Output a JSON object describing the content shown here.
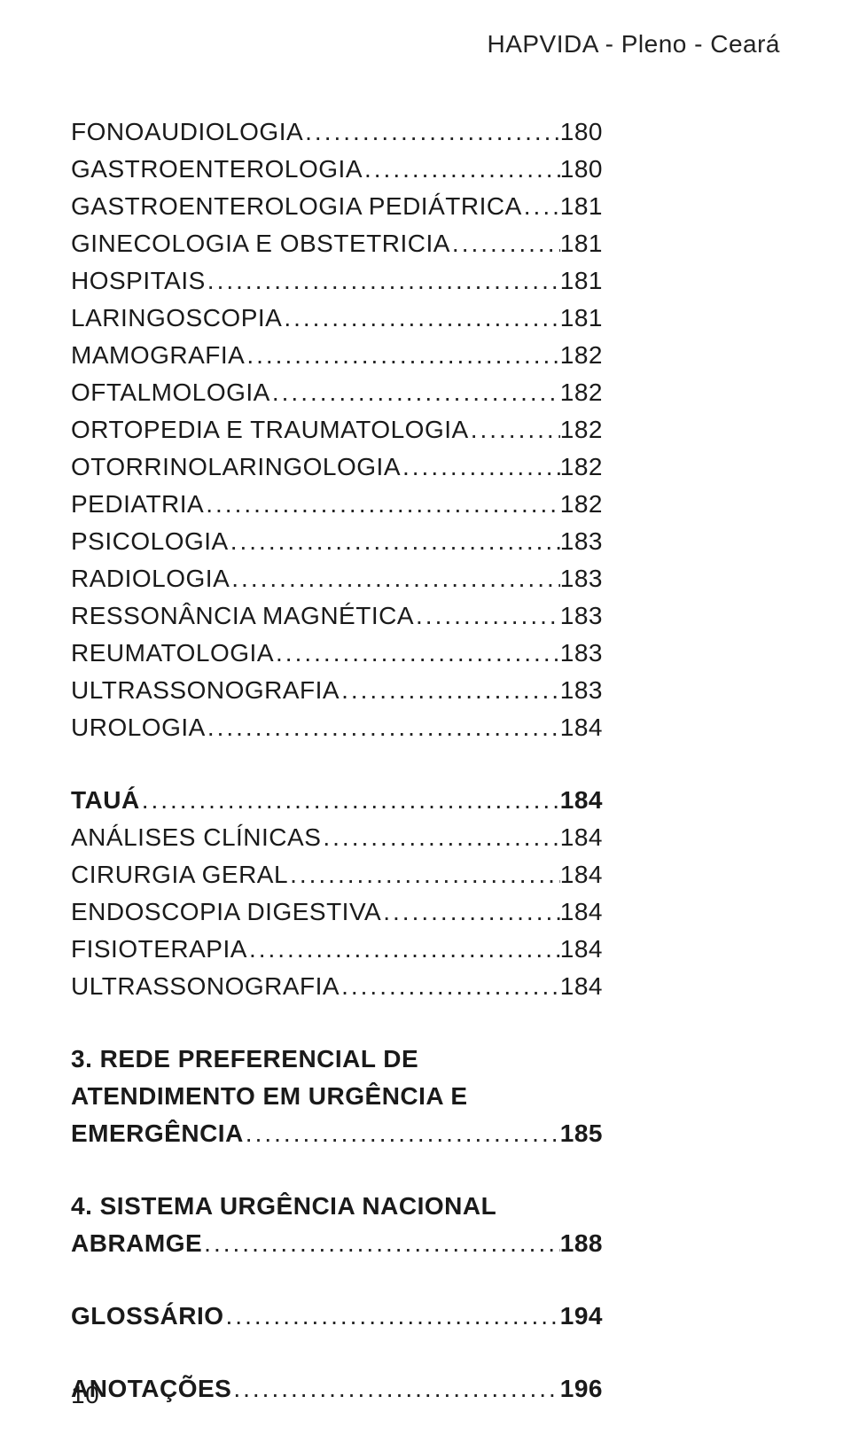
{
  "header": "HAPVIDA - Pleno - Ceará",
  "page_number": "10",
  "dots": "............................................................................................................................",
  "groups": [
    {
      "gap_before": false,
      "items": [
        {
          "label": "FONOAUDIOLOGIA",
          "page": "180",
          "bold": false
        },
        {
          "label": "GASTROENTEROLOGIA",
          "page": "180",
          "bold": false
        },
        {
          "label": "GASTROENTEROLOGIA PEDIÁTRICA",
          "page": "181",
          "bold": false
        },
        {
          "label": "GINECOLOGIA E OBSTETRICIA",
          "page": "181",
          "bold": false
        },
        {
          "label": "HOSPITAIS",
          "page": "181",
          "bold": false
        },
        {
          "label": "LARINGOSCOPIA",
          "page": "181",
          "bold": false
        },
        {
          "label": "MAMOGRAFIA",
          "page": "182",
          "bold": false
        },
        {
          "label": "OFTALMOLOGIA",
          "page": "182",
          "bold": false
        },
        {
          "label": "ORTOPEDIA E TRAUMATOLOGIA",
          "page": "182",
          "bold": false
        },
        {
          "label": "OTORRINOLARINGOLOGIA",
          "page": "182",
          "bold": false
        },
        {
          "label": "PEDIATRIA",
          "page": "182",
          "bold": false
        },
        {
          "label": "PSICOLOGIA",
          "page": "183",
          "bold": false
        },
        {
          "label": "RADIOLOGIA",
          "page": "183",
          "bold": false
        },
        {
          "label": "RESSONÂNCIA MAGNÉTICA",
          "page": "183",
          "bold": false
        },
        {
          "label": "REUMATOLOGIA",
          "page": "183",
          "bold": false
        },
        {
          "label": "ULTRASSONOGRAFIA",
          "page": "183",
          "bold": false
        },
        {
          "label": "UROLOGIA",
          "page": "184",
          "bold": false
        }
      ]
    },
    {
      "gap_before": true,
      "items": [
        {
          "label": "TAUÁ",
          "page": "184",
          "bold": true
        },
        {
          "label": "ANÁLISES CLÍNICAS",
          "page": "184",
          "bold": false
        },
        {
          "label": "CIRURGIA GERAL",
          "page": "184",
          "bold": false
        },
        {
          "label": "ENDOSCOPIA DIGESTIVA",
          "page": "184",
          "bold": false
        },
        {
          "label": "FISIOTERAPIA",
          "page": "184",
          "bold": false
        },
        {
          "label": "ULTRASSONOGRAFIA",
          "page": "184",
          "bold": false
        }
      ]
    },
    {
      "gap_before": true,
      "items": [
        {
          "label_lines": [
            "3. REDE PREFERENCIAL DE",
            "ATENDIMENTO EM URGÊNCIA E"
          ],
          "last_label": "EMERGÊNCIA",
          "page": "185",
          "bold": true,
          "multiline": true
        }
      ]
    },
    {
      "gap_before": true,
      "items": [
        {
          "label_lines": [
            "4. SISTEMA URGÊNCIA NACIONAL"
          ],
          "last_label": "ABRAMGE",
          "page": "188",
          "bold": true,
          "multiline": true
        }
      ]
    },
    {
      "gap_before": true,
      "items": [
        {
          "label": "GLOSSÁRIO",
          "page": "194",
          "bold": true
        }
      ]
    },
    {
      "gap_before": true,
      "items": [
        {
          "label": "ANOTAÇÕES",
          "page": "196",
          "bold": true
        }
      ]
    }
  ]
}
